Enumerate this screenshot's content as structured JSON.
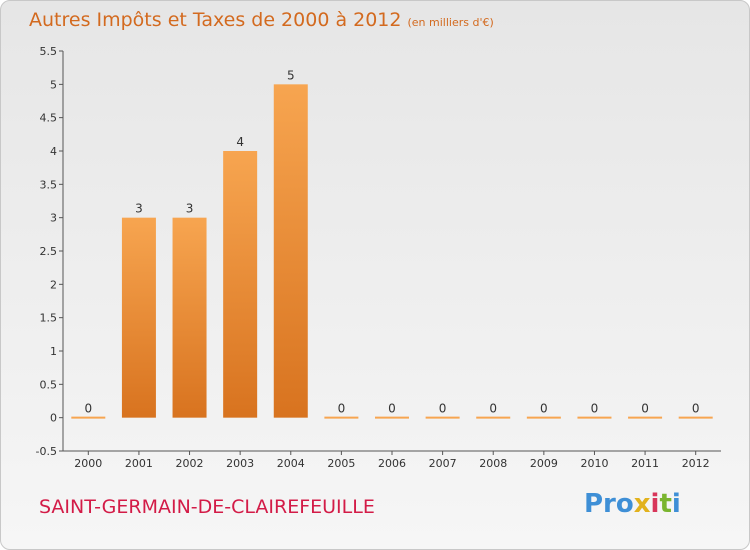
{
  "title": {
    "main": "Autres Impôts et Taxes de 2000 à 2012",
    "unit": "(en milliers d'€)"
  },
  "commune": "SAINT-GERMAIN-DE-CLAIREFEUILLE",
  "logo": {
    "parts": [
      "Pro",
      "x",
      "i",
      "t",
      "i"
    ],
    "colors": [
      "#3e8fd6",
      "#e2b21d",
      "#d8365a",
      "#7ab52f",
      "#3e8fd6"
    ]
  },
  "chart_data": {
    "type": "bar",
    "title": "Autres Impôts et Taxes de 2000 à 2012",
    "subtitle": "(en milliers d'€)",
    "xlabel": "",
    "ylabel": "",
    "categories": [
      "2000",
      "2001",
      "2002",
      "2003",
      "2004",
      "2005",
      "2006",
      "2007",
      "2008",
      "2009",
      "2010",
      "2011",
      "2012"
    ],
    "values": [
      0,
      3,
      3,
      4,
      5,
      0,
      0,
      0,
      0,
      0,
      0,
      0,
      0
    ],
    "data_labels": [
      "0",
      "3",
      "3",
      "4",
      "5",
      "0",
      "0",
      "0",
      "0",
      "0",
      "0",
      "0",
      "0"
    ],
    "ylim": [
      -0.5,
      5.5
    ],
    "yticks": [
      -0.5,
      0,
      0.5,
      1,
      1.5,
      2,
      2.5,
      3,
      3.5,
      4,
      4.5,
      5,
      5.5
    ],
    "ytick_labels": [
      "-0.5",
      "0",
      "0.5",
      "1",
      "1.5",
      "2",
      "2.5",
      "3",
      "3.5",
      "4",
      "4.5",
      "5",
      "5.5"
    ],
    "grid": false,
    "legend": "none",
    "colors": {
      "bar_light": "#f7a550",
      "bar_dark": "#d8731f",
      "axis": "#555555",
      "title": "#d36a1f",
      "commune": "#d31b47"
    }
  }
}
